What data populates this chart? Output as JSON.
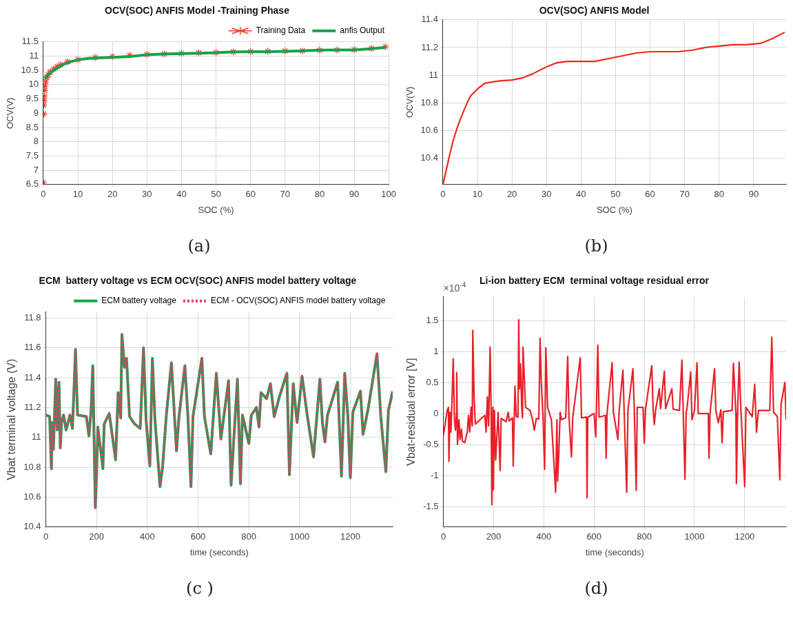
{
  "chart_data": [
    {
      "type": "line",
      "title": "OCV(SOC) ANFIS Model -Training Phase",
      "xlabel": "SOC (%)",
      "ylabel": "OCV(V)",
      "xlim": [
        0,
        100
      ],
      "ylim": [
        6.5,
        11.5
      ],
      "xticks": [
        0,
        10,
        20,
        30,
        40,
        50,
        60,
        70,
        80,
        90,
        100
      ],
      "yticks": [
        6.5,
        7,
        7.5,
        8,
        8.5,
        9,
        9.5,
        10,
        10.5,
        11,
        11.5
      ],
      "grid": true,
      "legend": "top right",
      "annotations": [
        "(a)"
      ],
      "series": [
        {
          "name": "Training Data",
          "type": "scatter",
          "marker": "cross",
          "color": "#ee3b2b",
          "x": [
            0,
            0.1,
            0.1,
            0.2,
            0.3,
            0.4,
            0.5,
            0.7,
            1,
            1.5,
            2,
            3,
            4,
            5,
            7,
            10,
            15,
            20,
            25,
            30,
            35,
            40,
            45,
            50,
            55,
            60,
            65,
            70,
            75,
            80,
            85,
            90,
            95,
            99
          ],
          "values": [
            6.57,
            8.97,
            9.28,
            9.45,
            9.6,
            9.8,
            9.95,
            10.1,
            10.25,
            10.35,
            10.45,
            10.55,
            10.63,
            10.7,
            10.8,
            10.88,
            10.95,
            10.99,
            11.03,
            11.06,
            11.08,
            11.1,
            11.12,
            11.13,
            11.15,
            11.16,
            11.17,
            11.18,
            11.19,
            11.21,
            11.22,
            11.23,
            11.27,
            11.33
          ]
        },
        {
          "name": "anfis Output",
          "type": "line",
          "color": "#1aa04a",
          "x": [
            0.3,
            1,
            2,
            4,
            6,
            8,
            10,
            13,
            16,
            20,
            25,
            30,
            35,
            40,
            45,
            50,
            55,
            60,
            65,
            70,
            75,
            80,
            85,
            90,
            95,
            99
          ],
          "values": [
            10.22,
            10.3,
            10.42,
            10.58,
            10.72,
            10.81,
            10.87,
            10.92,
            10.94,
            10.96,
            10.99,
            11.05,
            11.08,
            11.09,
            11.1,
            11.12,
            11.15,
            11.16,
            11.16,
            11.17,
            11.19,
            11.21,
            11.22,
            11.22,
            11.26,
            11.31
          ]
        }
      ]
    },
    {
      "type": "line",
      "title": "OCV(SOC) ANFIS Model",
      "xlabel": "SOC (%)",
      "ylabel": "OCV(V)",
      "xlim": [
        0,
        99.4
      ],
      "ylim": [
        10.21,
        11.4
      ],
      "xticks": [
        0,
        10,
        20,
        30,
        40,
        50,
        60,
        70,
        80,
        90
      ],
      "yticks": [
        10.4,
        10.6,
        10.8,
        11,
        11.2,
        11.4
      ],
      "grid": true,
      "annotations": [
        "(b)"
      ],
      "x": [
        0,
        1,
        2,
        3,
        4,
        5,
        6,
        7,
        8,
        10,
        12,
        14,
        17,
        20,
        23,
        26,
        30,
        33,
        36,
        40,
        44,
        48,
        52,
        56,
        60,
        64,
        68,
        72,
        76,
        80,
        84,
        88,
        92,
        95,
        99
      ],
      "series": [
        {
          "color": "#f0281e",
          "values": [
            10.21,
            10.32,
            10.43,
            10.53,
            10.61,
            10.68,
            10.74,
            10.8,
            10.85,
            10.9,
            10.94,
            10.95,
            10.96,
            10.965,
            10.98,
            11.01,
            11.06,
            11.09,
            11.1,
            11.1,
            11.1,
            11.12,
            11.14,
            11.16,
            11.17,
            11.17,
            11.17,
            11.18,
            11.2,
            11.21,
            11.22,
            11.22,
            11.23,
            11.26,
            11.31
          ]
        }
      ]
    },
    {
      "type": "line",
      "title": "ECM  battery voltage vs ECM OCV(SOC) ANFIS model battery voltage",
      "xlabel": "time (seconds)",
      "ylabel": "Vbat terminal voltage (V)",
      "xlim": [
        0,
        1367
      ],
      "ylim": [
        10.4,
        11.84
      ],
      "xticks": [
        0,
        200,
        400,
        600,
        800,
        1000,
        1200
      ],
      "yticks": [
        10.4,
        10.6,
        10.8,
        11,
        11.2,
        11.4,
        11.6,
        11.8
      ],
      "grid": true,
      "legend": "top right",
      "annotations": [
        "(c )"
      ],
      "x": [
        0,
        15,
        22,
        25,
        30,
        39,
        45,
        52,
        57,
        62,
        70,
        80,
        95,
        105,
        117,
        125,
        160,
        170,
        178,
        185,
        190,
        195,
        200,
        205,
        225,
        230,
        250,
        275,
        285,
        295,
        300,
        310,
        318,
        330,
        350,
        372,
        385,
        395,
        410,
        420,
        430,
        450,
        460,
        475,
        495,
        515,
        525,
        548,
        560,
        572,
        580,
        615,
        625,
        650,
        672,
        690,
        720,
        730,
        755,
        767,
        775,
        800,
        810,
        830,
        840,
        848,
        870,
        885,
        900,
        920,
        950,
        960,
        975,
        990,
        1010,
        1030,
        1055,
        1080,
        1090,
        1100,
        1110,
        1150,
        1165,
        1178,
        1190,
        1200,
        1210,
        1240,
        1250,
        1270,
        1305,
        1320,
        1340,
        1350,
        1367
      ],
      "series": [
        {
          "name": "ECM battery voltage",
          "color": "#14a54b",
          "values": [
            11.15,
            11.14,
            10.79,
            11.1,
            10.92,
            11.39,
            11.05,
            11.37,
            10.93,
            11.1,
            11.15,
            11.05,
            11.15,
            11.06,
            11.59,
            11.15,
            11.14,
            11.01,
            11.17,
            11.48,
            11.02,
            10.53,
            10.75,
            11.07,
            10.79,
            11.09,
            11.16,
            10.85,
            11.3,
            11.13,
            11.69,
            11.47,
            11.53,
            11.14,
            11.09,
            11.06,
            11.6,
            11.12,
            10.81,
            11.53,
            11.12,
            10.67,
            10.8,
            11.15,
            11.5,
            10.91,
            11.14,
            11.48,
            11.14,
            10.67,
            11.14,
            11.53,
            11.14,
            10.89,
            11.43,
            10.99,
            11.38,
            10.68,
            11.39,
            10.69,
            11.15,
            10.96,
            11.15,
            11.2,
            11.07,
            11.3,
            11.26,
            11.36,
            11.14,
            11.27,
            11.43,
            10.75,
            11.36,
            11.1,
            11.41,
            11.15,
            10.87,
            11.39,
            11.1,
            10.97,
            11.15,
            11.37,
            10.74,
            11.43,
            11.15,
            10.73,
            11.17,
            11.31,
            11.02,
            11.19,
            11.56,
            11.14,
            10.77,
            11.18,
            11.31
          ]
        },
        {
          "name": "ECM - OCV(SOC) ANFIS model battery voltage",
          "color": "#e8386e",
          "line_style": "dotted",
          "values": [
            11.15,
            11.14,
            10.79,
            11.1,
            10.92,
            11.39,
            11.05,
            11.37,
            10.93,
            11.1,
            11.15,
            11.05,
            11.15,
            11.06,
            11.59,
            11.15,
            11.14,
            11.01,
            11.17,
            11.48,
            11.02,
            10.53,
            10.75,
            11.07,
            10.79,
            11.09,
            11.16,
            10.85,
            11.3,
            11.13,
            11.69,
            11.47,
            11.53,
            11.14,
            11.09,
            11.06,
            11.6,
            11.12,
            10.81,
            11.53,
            11.12,
            10.67,
            10.8,
            11.15,
            11.5,
            10.91,
            11.14,
            11.48,
            11.14,
            10.67,
            11.14,
            11.53,
            11.14,
            10.89,
            11.43,
            10.99,
            11.38,
            10.68,
            11.39,
            10.69,
            11.15,
            10.96,
            11.15,
            11.2,
            11.07,
            11.3,
            11.26,
            11.36,
            11.14,
            11.27,
            11.43,
            10.75,
            11.36,
            11.1,
            11.41,
            11.15,
            10.87,
            11.39,
            11.1,
            10.97,
            11.15,
            11.37,
            10.74,
            11.43,
            11.15,
            10.73,
            11.17,
            11.31,
            11.02,
            11.19,
            11.56,
            11.14,
            10.77,
            11.18,
            11.31
          ]
        }
      ]
    },
    {
      "type": "line",
      "title": "Li-ion battery ECM  terminal voltage residual error",
      "xlabel": "time (seconds)",
      "ylabel": "Vbat-residual error [V]",
      "xlim": [
        0,
        1365
      ],
      "ylim": [
        -1.83,
        1.88
      ],
      "xticks": [
        0,
        200,
        400,
        600,
        800,
        1000,
        1200
      ],
      "yticks": [
        -1.5,
        -1,
        -0.5,
        0,
        0.5,
        1,
        1.5
      ],
      "grid": true,
      "annotations": [
        "×10$^{-4}$",
        "(d)"
      ],
      "x": [
        0,
        15,
        20,
        22,
        26,
        30,
        35,
        39,
        44,
        48,
        52,
        53,
        56,
        62,
        66,
        72,
        76,
        85,
        95,
        100,
        105,
        110,
        115,
        117,
        122,
        127,
        165,
        170,
        175,
        180,
        186,
        190,
        193,
        197,
        199,
        203,
        208,
        218,
        226,
        230,
        250,
        258,
        262,
        275,
        278,
        285,
        290,
        297,
        300,
        303,
        307,
        312,
        315,
        317,
        322,
        327,
        345,
        355,
        362,
        370,
        380,
        385,
        390,
        397,
        403,
        408,
        415,
        430,
        447,
        452,
        455,
        460,
        465,
        470,
        487,
        495,
        500,
        510,
        515,
        545,
        550,
        570,
        572,
        575,
        600,
        607,
        615,
        620,
        645,
        648,
        652,
        672,
        677,
        695,
        700,
        715,
        720,
        730,
        735,
        755,
        760,
        768,
        772,
        795,
        800,
        805,
        830,
        835,
        840,
        845,
        860,
        865,
        880,
        885,
        910,
        915,
        940,
        950,
        955,
        962,
        967,
        970,
        985,
        990,
        1000,
        1010,
        1015,
        1055,
        1058,
        1062,
        1080,
        1085,
        1095,
        1105,
        1110,
        1115,
        1150,
        1155,
        1165,
        1167,
        1172,
        1178,
        1185,
        1200,
        1205,
        1230,
        1240,
        1247,
        1255,
        1300,
        1308,
        1315,
        1330,
        1340,
        1345,
        1360,
        1365
      ],
      "series": [
        {
          "color": "#e8202a",
          "values": [
            -0.35,
            0.05,
            0.1,
            -0.77,
            0.02,
            -0.3,
            0.3,
            0.88,
            -0.1,
            -0.27,
            0,
            0.66,
            -0.5,
            -0.1,
            -0.42,
            -0.25,
            -0.45,
            -0.47,
            -0.3,
            -0.03,
            -0.3,
            0.1,
            -0.2,
            1.34,
            0.3,
            -0.17,
            -0.03,
            -0.3,
            0.27,
            -0.2,
            1.07,
            0.05,
            -1.47,
            0.1,
            -1.23,
            0.05,
            -0.75,
            0.02,
            -0.92,
            -0.08,
            -0.13,
            0.02,
            -0.12,
            -0.07,
            -0.85,
            0.44,
            -0.05,
            -0.06,
            1.51,
            0.4,
            0.8,
            0.1,
            -0.07,
            1.07,
            0.6,
            0.1,
            0.05,
            -0.1,
            -0.27,
            -0.08,
            -0.09,
            1.21,
            0.5,
            -0.1,
            -0.9,
            1.06,
            0.1,
            -0.1,
            -1.27,
            -0.1,
            -1.09,
            -0.6,
            0.02,
            -0.1,
            -0.07,
            0.92,
            -0.05,
            -0.7,
            -0.07,
            0.9,
            -0.07,
            -0.06,
            -1.36,
            -0.06,
            0,
            -0.38,
            1.1,
            -0.06,
            -0.03,
            -0.72,
            0.02,
            0.82,
            0.02,
            -0.42,
            0.05,
            0.7,
            0.02,
            -1.27,
            0.05,
            0.72,
            0.1,
            -1.24,
            0.1,
            0.1,
            -0.48,
            0.07,
            0.77,
            0.08,
            -0.18,
            0.05,
            0.4,
            0.08,
            0.68,
            0.08,
            0.4,
            0.07,
            0.05,
            0.86,
            0.05,
            -1.06,
            0.03,
            0.07,
            0.67,
            -0.1,
            0.05,
            0.82,
            0,
            0,
            -0.72,
            0,
            0.72,
            0.05,
            -0.15,
            0.06,
            -0.47,
            0.03,
            0.05,
            0.81,
            0,
            -1.13,
            0.05,
            0.83,
            0.05,
            -1.18,
            0.1,
            -0.05,
            0.47,
            -0.3,
            0.05,
            0.05,
            1.23,
            0.02,
            -0.05,
            -1.07,
            0.15,
            0.5,
            -0.1
          ]
        }
      ]
    }
  ]
}
